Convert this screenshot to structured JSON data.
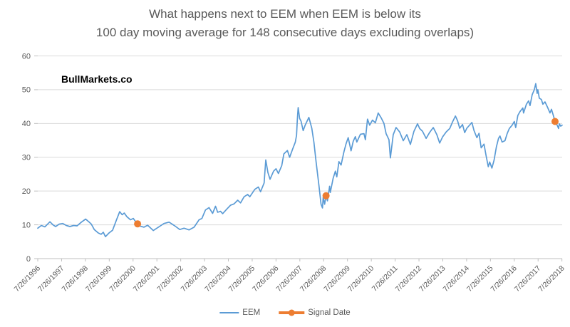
{
  "title": {
    "line1": "What happens next to EEM when EEM is below its",
    "line2": "100 day moving average for 148 consecutive days excluding overlaps)"
  },
  "watermark": "BullMarkets.co",
  "legend": [
    {
      "label": "EEM",
      "color": "#5B9BD5",
      "type": "line"
    },
    {
      "label": "Signal Date",
      "color": "#ED7D31",
      "type": "line-marker"
    }
  ],
  "chart_data": {
    "type": "line",
    "title": "What happens next to EEM when EEM is below its 100 day moving average for 148 consecutive days excluding overlaps)",
    "xlabel": "",
    "ylabel": "",
    "grid": true,
    "legend_position": "bottom",
    "colors": {
      "grid": "#d9d9d9",
      "axis": "#bfbfbf",
      "label": "#595959"
    },
    "x_axis": {
      "rotation": -45,
      "labels": [
        "7/26/1996",
        "7/26/1997",
        "7/26/1998",
        "7/26/1999",
        "7/26/2000",
        "7/26/2001",
        "7/26/2002",
        "7/26/2003",
        "7/26/2004",
        "7/26/2005",
        "7/26/2006",
        "7/26/2007",
        "7/26/2008",
        "7/26/2009",
        "7/26/2010",
        "7/26/2011",
        "7/26/2012",
        "7/26/2013",
        "7/26/2014",
        "7/26/2015",
        "7/26/2016",
        "7/26/2017",
        "7/26/2018"
      ]
    },
    "y_axis": {
      "ticks": [
        0,
        10,
        20,
        30,
        40,
        50,
        60
      ],
      "range": [
        0,
        60
      ]
    },
    "x_range": [
      1996.56,
      2018.57
    ],
    "series": [
      {
        "name": "EEM",
        "color": "#5B9BD5",
        "points": [
          [
            1996.56,
            9.0
          ],
          [
            1996.71,
            9.8
          ],
          [
            1996.86,
            9.4
          ],
          [
            1997.07,
            10.9
          ],
          [
            1997.2,
            10.0
          ],
          [
            1997.31,
            9.5
          ],
          [
            1997.46,
            10.2
          ],
          [
            1997.61,
            10.4
          ],
          [
            1997.76,
            9.8
          ],
          [
            1997.91,
            9.5
          ],
          [
            1998.06,
            9.8
          ],
          [
            1998.21,
            9.7
          ],
          [
            1998.39,
            10.8
          ],
          [
            1998.57,
            11.7
          ],
          [
            1998.72,
            10.8
          ],
          [
            1998.81,
            10.2
          ],
          [
            1998.93,
            8.6
          ],
          [
            1999.1,
            7.6
          ],
          [
            1999.22,
            7.2
          ],
          [
            1999.31,
            7.8
          ],
          [
            1999.4,
            6.5
          ],
          [
            1999.55,
            7.6
          ],
          [
            1999.7,
            8.4
          ],
          [
            1999.85,
            11.2
          ],
          [
            2000.0,
            13.9
          ],
          [
            2000.1,
            13.0
          ],
          [
            2000.19,
            13.5
          ],
          [
            2000.3,
            12.4
          ],
          [
            2000.45,
            11.5
          ],
          [
            2000.57,
            11.9
          ],
          [
            2000.66,
            11.0
          ],
          [
            2000.75,
            10.3
          ],
          [
            2000.87,
            9.6
          ],
          [
            2001.02,
            9.3
          ],
          [
            2001.17,
            9.9
          ],
          [
            2001.41,
            8.3
          ],
          [
            2001.62,
            9.3
          ],
          [
            2001.86,
            10.4
          ],
          [
            2002.07,
            10.8
          ],
          [
            2002.31,
            9.7
          ],
          [
            2002.52,
            8.6
          ],
          [
            2002.7,
            9.0
          ],
          [
            2002.91,
            8.5
          ],
          [
            2003.12,
            9.3
          ],
          [
            2003.33,
            11.5
          ],
          [
            2003.45,
            11.9
          ],
          [
            2003.6,
            14.4
          ],
          [
            2003.75,
            15.1
          ],
          [
            2003.9,
            13.4
          ],
          [
            2004.02,
            15.5
          ],
          [
            2004.11,
            13.7
          ],
          [
            2004.23,
            14.0
          ],
          [
            2004.32,
            13.3
          ],
          [
            2004.5,
            14.7
          ],
          [
            2004.65,
            15.8
          ],
          [
            2004.8,
            16.2
          ],
          [
            2004.95,
            17.3
          ],
          [
            2005.07,
            16.5
          ],
          [
            2005.22,
            18.3
          ],
          [
            2005.37,
            19.0
          ],
          [
            2005.46,
            18.3
          ],
          [
            2005.67,
            20.5
          ],
          [
            2005.82,
            21.2
          ],
          [
            2005.91,
            19.8
          ],
          [
            2006.06,
            22.4
          ],
          [
            2006.13,
            29.2
          ],
          [
            2006.22,
            25.5
          ],
          [
            2006.31,
            23.5
          ],
          [
            2006.46,
            25.9
          ],
          [
            2006.56,
            26.6
          ],
          [
            2006.66,
            25.2
          ],
          [
            2006.8,
            27.5
          ],
          [
            2006.89,
            31.0
          ],
          [
            2007.04,
            32.0
          ],
          [
            2007.13,
            30.0
          ],
          [
            2007.25,
            32.3
          ],
          [
            2007.37,
            34.5
          ],
          [
            2007.42,
            36.5
          ],
          [
            2007.45,
            40.7
          ],
          [
            2007.47,
            42.8
          ],
          [
            2007.49,
            44.7
          ],
          [
            2007.55,
            41.5
          ],
          [
            2007.61,
            40.7
          ],
          [
            2007.7,
            37.9
          ],
          [
            2007.79,
            39.6
          ],
          [
            2007.94,
            41.8
          ],
          [
            2008.06,
            38.6
          ],
          [
            2008.15,
            34.4
          ],
          [
            2008.24,
            28.7
          ],
          [
            2008.36,
            21.7
          ],
          [
            2008.45,
            16.1
          ],
          [
            2008.51,
            15.0
          ],
          [
            2008.54,
            18.2
          ],
          [
            2008.6,
            16.1
          ],
          [
            2008.66,
            18.6
          ],
          [
            2008.72,
            17.1
          ],
          [
            2008.81,
            21.4
          ],
          [
            2008.84,
            19.6
          ],
          [
            2008.96,
            23.8
          ],
          [
            2009.05,
            25.9
          ],
          [
            2009.11,
            24.2
          ],
          [
            2009.2,
            28.7
          ],
          [
            2009.29,
            27.7
          ],
          [
            2009.41,
            31.6
          ],
          [
            2009.5,
            34.0
          ],
          [
            2009.59,
            35.8
          ],
          [
            2009.71,
            31.9
          ],
          [
            2009.8,
            34.7
          ],
          [
            2009.89,
            36.1
          ],
          [
            2009.95,
            34.5
          ],
          [
            2010.1,
            36.8
          ],
          [
            2010.25,
            37.0
          ],
          [
            2010.31,
            35.2
          ],
          [
            2010.4,
            41.3
          ],
          [
            2010.49,
            39.5
          ],
          [
            2010.61,
            41.0
          ],
          [
            2010.73,
            40.2
          ],
          [
            2010.85,
            43.1
          ],
          [
            2010.97,
            41.7
          ],
          [
            2011.09,
            40.0
          ],
          [
            2011.18,
            37.0
          ],
          [
            2011.3,
            35.2
          ],
          [
            2011.36,
            29.8
          ],
          [
            2011.48,
            36.7
          ],
          [
            2011.6,
            38.8
          ],
          [
            2011.75,
            37.5
          ],
          [
            2011.9,
            34.9
          ],
          [
            2012.05,
            36.7
          ],
          [
            2012.2,
            33.8
          ],
          [
            2012.35,
            37.7
          ],
          [
            2012.5,
            39.9
          ],
          [
            2012.59,
            38.5
          ],
          [
            2012.71,
            37.7
          ],
          [
            2012.86,
            35.6
          ],
          [
            2013.01,
            37.4
          ],
          [
            2013.16,
            38.8
          ],
          [
            2013.31,
            36.7
          ],
          [
            2013.43,
            34.2
          ],
          [
            2013.55,
            36.0
          ],
          [
            2013.7,
            37.5
          ],
          [
            2013.85,
            38.5
          ],
          [
            2013.97,
            40.5
          ],
          [
            2014.09,
            42.2
          ],
          [
            2014.18,
            40.8
          ],
          [
            2014.27,
            38.6
          ],
          [
            2014.39,
            39.7
          ],
          [
            2014.48,
            37.3
          ],
          [
            2014.57,
            38.6
          ],
          [
            2014.78,
            40.3
          ],
          [
            2014.87,
            37.9
          ],
          [
            2014.99,
            35.8
          ],
          [
            2015.08,
            37.1
          ],
          [
            2015.17,
            32.8
          ],
          [
            2015.29,
            33.9
          ],
          [
            2015.38,
            30.4
          ],
          [
            2015.47,
            27.2
          ],
          [
            2015.53,
            28.6
          ],
          [
            2015.62,
            26.8
          ],
          [
            2015.71,
            29.1
          ],
          [
            2015.81,
            33.1
          ],
          [
            2015.9,
            35.6
          ],
          [
            2015.96,
            36.3
          ],
          [
            2016.05,
            34.5
          ],
          [
            2016.17,
            34.9
          ],
          [
            2016.26,
            37.0
          ],
          [
            2016.35,
            38.5
          ],
          [
            2016.47,
            39.5
          ],
          [
            2016.56,
            40.6
          ],
          [
            2016.62,
            38.8
          ],
          [
            2016.71,
            42.4
          ],
          [
            2016.8,
            43.5
          ],
          [
            2016.92,
            44.6
          ],
          [
            2016.95,
            43.1
          ],
          [
            2017.07,
            45.7
          ],
          [
            2017.16,
            46.7
          ],
          [
            2017.22,
            45.3
          ],
          [
            2017.31,
            48.5
          ],
          [
            2017.4,
            50.0
          ],
          [
            2017.46,
            51.8
          ],
          [
            2017.52,
            48.9
          ],
          [
            2017.55,
            50.0
          ],
          [
            2017.61,
            47.5
          ],
          [
            2017.7,
            47.1
          ],
          [
            2017.76,
            45.7
          ],
          [
            2017.85,
            46.4
          ],
          [
            2017.97,
            44.6
          ],
          [
            2018.06,
            43.1
          ],
          [
            2018.12,
            44.2
          ],
          [
            2018.21,
            42.1
          ],
          [
            2018.27,
            40.6
          ],
          [
            2018.36,
            39.5
          ],
          [
            2018.42,
            38.5
          ],
          [
            2018.45,
            39.9
          ],
          [
            2018.51,
            39.2
          ],
          [
            2018.57,
            39.5
          ]
        ]
      }
    ],
    "signals": {
      "name": "Signal Date",
      "color": "#ED7D31",
      "points": [
        [
          2000.75,
          10.3
        ],
        [
          2008.66,
          18.6
        ],
        [
          2018.27,
          40.6
        ]
      ]
    }
  }
}
